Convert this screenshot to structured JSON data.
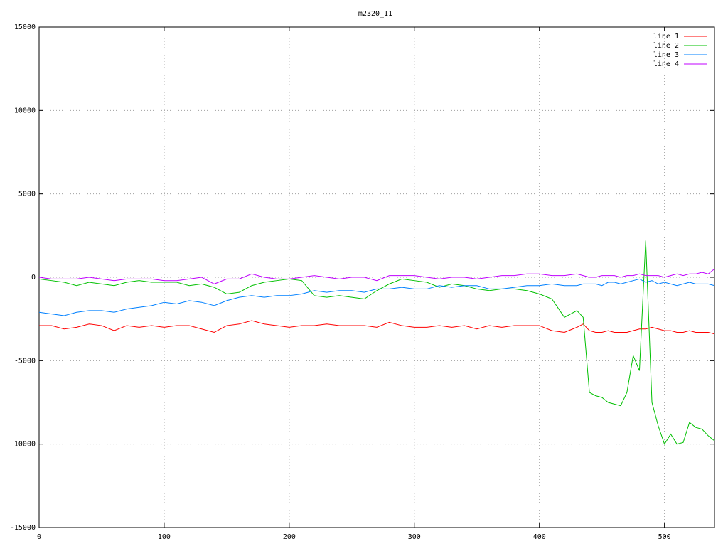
{
  "chart_data": {
    "type": "line",
    "title": "m2320_11",
    "x": [
      0,
      10,
      20,
      30,
      40,
      50,
      60,
      70,
      80,
      90,
      100,
      110,
      120,
      130,
      140,
      150,
      160,
      170,
      180,
      190,
      200,
      210,
      220,
      230,
      240,
      250,
      260,
      270,
      280,
      290,
      300,
      310,
      320,
      330,
      340,
      350,
      360,
      370,
      380,
      390,
      400,
      410,
      420,
      430,
      435,
      440,
      445,
      450,
      455,
      460,
      465,
      470,
      475,
      480,
      485,
      490,
      495,
      500,
      505,
      510,
      515,
      520,
      525,
      530,
      535,
      540
    ],
    "series": [
      {
        "name": "line 1",
        "color": "#ff0000",
        "values": [
          -2900,
          -2900,
          -3100,
          -3000,
          -2800,
          -2900,
          -3200,
          -2900,
          -3000,
          -2900,
          -3000,
          -2900,
          -2900,
          -3100,
          -3300,
          -2900,
          -2800,
          -2600,
          -2800,
          -2900,
          -3000,
          -2900,
          -2900,
          -2800,
          -2900,
          -2900,
          -2900,
          -3000,
          -2700,
          -2900,
          -3000,
          -3000,
          -2900,
          -3000,
          -2900,
          -3100,
          -2900,
          -3000,
          -2900,
          -2900,
          -2900,
          -3200,
          -3300,
          -3000,
          -2800,
          -3200,
          -3300,
          -3300,
          -3200,
          -3300,
          -3300,
          -3300,
          -3200,
          -3100,
          -3100,
          -3000,
          -3100,
          -3200,
          -3200,
          -3300,
          -3300,
          -3200,
          -3300,
          -3300,
          -3300,
          -3400
        ]
      },
      {
        "name": "line 2",
        "color": "#00c000",
        "values": [
          -100,
          -200,
          -300,
          -500,
          -300,
          -400,
          -500,
          -300,
          -200,
          -300,
          -300,
          -300,
          -500,
          -400,
          -600,
          -1000,
          -900,
          -500,
          -300,
          -200,
          -100,
          -200,
          -1100,
          -1200,
          -1100,
          -1200,
          -1300,
          -800,
          -400,
          -100,
          -200,
          -300,
          -600,
          -400,
          -500,
          -700,
          -800,
          -700,
          -700,
          -800,
          -1000,
          -1300,
          -2400,
          -2000,
          -2400,
          -6900,
          -7100,
          -7200,
          -7500,
          -7600,
          -7700,
          -6900,
          -4700,
          -5600,
          2200,
          -7500,
          -8900,
          -10000,
          -9400,
          -10000,
          -9900,
          -8700,
          -9000,
          -9100,
          -9500,
          -9800
        ]
      },
      {
        "name": "line 3",
        "color": "#0080ff",
        "values": [
          -2100,
          -2200,
          -2300,
          -2100,
          -2000,
          -2000,
          -2100,
          -1900,
          -1800,
          -1700,
          -1500,
          -1600,
          -1400,
          -1500,
          -1700,
          -1400,
          -1200,
          -1100,
          -1200,
          -1100,
          -1100,
          -1000,
          -800,
          -900,
          -800,
          -800,
          -900,
          -700,
          -700,
          -600,
          -700,
          -700,
          -500,
          -600,
          -500,
          -500,
          -700,
          -700,
          -600,
          -500,
          -500,
          -400,
          -500,
          -500,
          -400,
          -400,
          -400,
          -500,
          -300,
          -300,
          -400,
          -300,
          -200,
          -100,
          -300,
          -200,
          -400,
          -300,
          -400,
          -500,
          -400,
          -300,
          -400,
          -400,
          -400,
          -500
        ]
      },
      {
        "name": "line 4",
        "color": "#c000ff",
        "values": [
          0,
          -100,
          -100,
          -100,
          0,
          -100,
          -200,
          -100,
          -100,
          -100,
          -200,
          -200,
          -100,
          0,
          -400,
          -100,
          -100,
          200,
          0,
          -100,
          -100,
          0,
          100,
          0,
          -100,
          0,
          0,
          -200,
          100,
          100,
          100,
          0,
          -100,
          0,
          0,
          -100,
          0,
          100,
          100,
          200,
          200,
          100,
          100,
          200,
          100,
          0,
          0,
          100,
          100,
          100,
          0,
          100,
          100,
          200,
          100,
          100,
          100,
          0,
          100,
          200,
          100,
          200,
          200,
          300,
          200,
          500
        ]
      }
    ],
    "xlim": [
      0,
      540
    ],
    "xticks": [
      0,
      100,
      200,
      300,
      400,
      500
    ],
    "ylim": [
      -15000,
      15000
    ],
    "yticks": [
      -15000,
      -10000,
      -5000,
      0,
      5000,
      10000,
      15000
    ],
    "grid": true,
    "legend": "top-right"
  }
}
